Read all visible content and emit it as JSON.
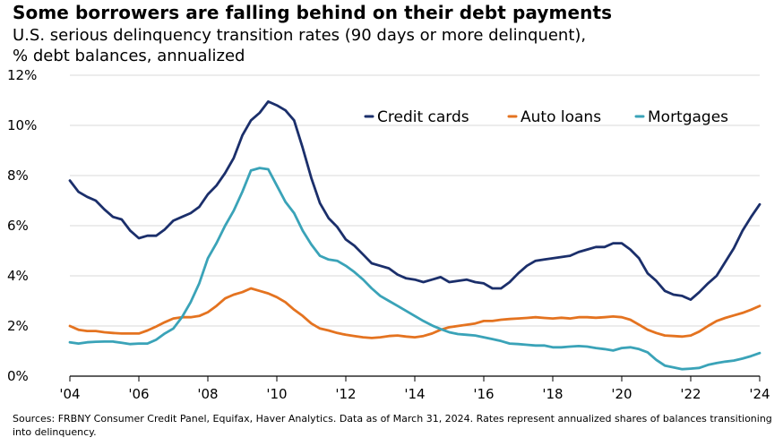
{
  "title": "Some borrowers are falling behind on their debt payments",
  "subtitle_line1": "U.S. serious delinquency transition rates (90 days or more delinquent),",
  "subtitle_line2": "% debt balances, annualized",
  "source": "Sources: FRBNY Consumer Credit Panel, Equifax, Haver Analytics. Data as of March 31, 2024. Rates represent annualized shares of balances transitioning into delinquency.",
  "chart_data": {
    "type": "line",
    "title": "Some borrowers are falling behind on their debt payments",
    "subtitle": "U.S. serious delinquency transition rates (90 days or more delinquent), % debt balances, annualized",
    "xlabel": "",
    "ylabel": "",
    "xlim": [
      2004,
      2024
    ],
    "ylim": [
      0,
      12
    ],
    "x_ticks": [
      {
        "value": 2004,
        "label": "'04"
      },
      {
        "value": 2006,
        "label": "'06"
      },
      {
        "value": 2008,
        "label": "'08"
      },
      {
        "value": 2010,
        "label": "'10"
      },
      {
        "value": 2012,
        "label": "'12"
      },
      {
        "value": 2014,
        "label": "'14"
      },
      {
        "value": 2016,
        "label": "'16"
      },
      {
        "value": 2018,
        "label": "'18"
      },
      {
        "value": 2020,
        "label": "'20"
      },
      {
        "value": 2022,
        "label": "'22"
      },
      {
        "value": 2024,
        "label": "'24"
      }
    ],
    "y_ticks": [
      {
        "value": 0,
        "label": "0%"
      },
      {
        "value": 2,
        "label": "2%"
      },
      {
        "value": 4,
        "label": "4%"
      },
      {
        "value": 6,
        "label": "6%"
      },
      {
        "value": 8,
        "label": "8%"
      },
      {
        "value": 10,
        "label": "10%"
      },
      {
        "value": 12,
        "label": "12%"
      }
    ],
    "grid": "horizontal",
    "legend_position": "top-right",
    "series": [
      {
        "name": "Credit cards",
        "color": "#1b2f6b",
        "points": [
          [
            2004.0,
            7.8
          ],
          [
            2004.25,
            7.35
          ],
          [
            2004.5,
            7.15
          ],
          [
            2004.75,
            7.0
          ],
          [
            2005.0,
            6.65
          ],
          [
            2005.25,
            6.35
          ],
          [
            2005.5,
            6.25
          ],
          [
            2005.75,
            5.8
          ],
          [
            2006.0,
            5.5
          ],
          [
            2006.25,
            5.6
          ],
          [
            2006.5,
            5.6
          ],
          [
            2006.75,
            5.85
          ],
          [
            2007.0,
            6.2
          ],
          [
            2007.25,
            6.35
          ],
          [
            2007.5,
            6.5
          ],
          [
            2007.75,
            6.75
          ],
          [
            2008.0,
            7.25
          ],
          [
            2008.25,
            7.6
          ],
          [
            2008.5,
            8.1
          ],
          [
            2008.75,
            8.7
          ],
          [
            2009.0,
            9.6
          ],
          [
            2009.25,
            10.2
          ],
          [
            2009.5,
            10.5
          ],
          [
            2009.75,
            10.95
          ],
          [
            2010.0,
            10.8
          ],
          [
            2010.25,
            10.6
          ],
          [
            2010.5,
            10.2
          ],
          [
            2010.75,
            9.1
          ],
          [
            2011.0,
            7.9
          ],
          [
            2011.25,
            6.9
          ],
          [
            2011.5,
            6.3
          ],
          [
            2011.75,
            5.95
          ],
          [
            2012.0,
            5.45
          ],
          [
            2012.25,
            5.2
          ],
          [
            2012.5,
            4.85
          ],
          [
            2012.75,
            4.5
          ],
          [
            2013.0,
            4.4
          ],
          [
            2013.25,
            4.3
          ],
          [
            2013.5,
            4.05
          ],
          [
            2013.75,
            3.9
          ],
          [
            2014.0,
            3.85
          ],
          [
            2014.25,
            3.75
          ],
          [
            2014.5,
            3.85
          ],
          [
            2014.75,
            3.95
          ],
          [
            2015.0,
            3.75
          ],
          [
            2015.25,
            3.8
          ],
          [
            2015.5,
            3.85
          ],
          [
            2015.75,
            3.75
          ],
          [
            2016.0,
            3.7
          ],
          [
            2016.25,
            3.5
          ],
          [
            2016.5,
            3.5
          ],
          [
            2016.75,
            3.75
          ],
          [
            2017.0,
            4.1
          ],
          [
            2017.25,
            4.4
          ],
          [
            2017.5,
            4.6
          ],
          [
            2017.75,
            4.65
          ],
          [
            2018.0,
            4.7
          ],
          [
            2018.25,
            4.75
          ],
          [
            2018.5,
            4.8
          ],
          [
            2018.75,
            4.95
          ],
          [
            2019.0,
            5.05
          ],
          [
            2019.25,
            5.15
          ],
          [
            2019.5,
            5.15
          ],
          [
            2019.75,
            5.3
          ],
          [
            2020.0,
            5.3
          ],
          [
            2020.25,
            5.05
          ],
          [
            2020.5,
            4.7
          ],
          [
            2020.75,
            4.1
          ],
          [
            2021.0,
            3.8
          ],
          [
            2021.25,
            3.4
          ],
          [
            2021.5,
            3.25
          ],
          [
            2021.75,
            3.2
          ],
          [
            2022.0,
            3.05
          ],
          [
            2022.25,
            3.35
          ],
          [
            2022.5,
            3.7
          ],
          [
            2022.75,
            4.0
          ],
          [
            2023.0,
            4.55
          ],
          [
            2023.25,
            5.1
          ],
          [
            2023.5,
            5.8
          ],
          [
            2023.75,
            6.35
          ],
          [
            2024.0,
            6.85
          ]
        ]
      },
      {
        "name": "Auto loans",
        "color": "#e47320",
        "points": [
          [
            2004.0,
            2.0
          ],
          [
            2004.25,
            1.85
          ],
          [
            2004.5,
            1.8
          ],
          [
            2004.75,
            1.8
          ],
          [
            2005.0,
            1.75
          ],
          [
            2005.25,
            1.72
          ],
          [
            2005.5,
            1.7
          ],
          [
            2005.75,
            1.7
          ],
          [
            2006.0,
            1.7
          ],
          [
            2006.25,
            1.82
          ],
          [
            2006.5,
            1.98
          ],
          [
            2006.75,
            2.15
          ],
          [
            2007.0,
            2.3
          ],
          [
            2007.25,
            2.35
          ],
          [
            2007.5,
            2.35
          ],
          [
            2007.75,
            2.4
          ],
          [
            2008.0,
            2.55
          ],
          [
            2008.25,
            2.8
          ],
          [
            2008.5,
            3.1
          ],
          [
            2008.75,
            3.25
          ],
          [
            2009.0,
            3.35
          ],
          [
            2009.25,
            3.5
          ],
          [
            2009.5,
            3.4
          ],
          [
            2009.75,
            3.3
          ],
          [
            2010.0,
            3.15
          ],
          [
            2010.25,
            2.95
          ],
          [
            2010.5,
            2.65
          ],
          [
            2010.75,
            2.4
          ],
          [
            2011.0,
            2.1
          ],
          [
            2011.25,
            1.9
          ],
          [
            2011.5,
            1.82
          ],
          [
            2011.75,
            1.72
          ],
          [
            2012.0,
            1.65
          ],
          [
            2012.25,
            1.6
          ],
          [
            2012.5,
            1.55
          ],
          [
            2012.75,
            1.52
          ],
          [
            2013.0,
            1.55
          ],
          [
            2013.25,
            1.6
          ],
          [
            2013.5,
            1.62
          ],
          [
            2013.75,
            1.58
          ],
          [
            2014.0,
            1.55
          ],
          [
            2014.25,
            1.6
          ],
          [
            2014.5,
            1.7
          ],
          [
            2014.75,
            1.85
          ],
          [
            2015.0,
            1.95
          ],
          [
            2015.25,
            2.0
          ],
          [
            2015.5,
            2.05
          ],
          [
            2015.75,
            2.1
          ],
          [
            2016.0,
            2.2
          ],
          [
            2016.25,
            2.2
          ],
          [
            2016.5,
            2.25
          ],
          [
            2016.75,
            2.28
          ],
          [
            2017.0,
            2.3
          ],
          [
            2017.25,
            2.32
          ],
          [
            2017.5,
            2.35
          ],
          [
            2017.75,
            2.32
          ],
          [
            2018.0,
            2.3
          ],
          [
            2018.25,
            2.33
          ],
          [
            2018.5,
            2.3
          ],
          [
            2018.75,
            2.35
          ],
          [
            2019.0,
            2.35
          ],
          [
            2019.25,
            2.33
          ],
          [
            2019.5,
            2.35
          ],
          [
            2019.75,
            2.38
          ],
          [
            2020.0,
            2.35
          ],
          [
            2020.25,
            2.25
          ],
          [
            2020.5,
            2.05
          ],
          [
            2020.75,
            1.85
          ],
          [
            2021.0,
            1.72
          ],
          [
            2021.25,
            1.62
          ],
          [
            2021.5,
            1.6
          ],
          [
            2021.75,
            1.58
          ],
          [
            2022.0,
            1.62
          ],
          [
            2022.25,
            1.78
          ],
          [
            2022.5,
            2.0
          ],
          [
            2022.75,
            2.2
          ],
          [
            2023.0,
            2.32
          ],
          [
            2023.25,
            2.42
          ],
          [
            2023.5,
            2.52
          ],
          [
            2023.75,
            2.65
          ],
          [
            2024.0,
            2.8
          ]
        ]
      },
      {
        "name": "Mortgages",
        "color": "#3aa3b8",
        "points": [
          [
            2004.0,
            1.35
          ],
          [
            2004.25,
            1.3
          ],
          [
            2004.5,
            1.35
          ],
          [
            2004.75,
            1.37
          ],
          [
            2005.0,
            1.38
          ],
          [
            2005.25,
            1.38
          ],
          [
            2005.5,
            1.33
          ],
          [
            2005.75,
            1.28
          ],
          [
            2006.0,
            1.3
          ],
          [
            2006.25,
            1.3
          ],
          [
            2006.5,
            1.45
          ],
          [
            2006.75,
            1.7
          ],
          [
            2007.0,
            1.9
          ],
          [
            2007.25,
            2.35
          ],
          [
            2007.5,
            2.95
          ],
          [
            2007.75,
            3.7
          ],
          [
            2008.0,
            4.7
          ],
          [
            2008.25,
            5.3
          ],
          [
            2008.5,
            6.0
          ],
          [
            2008.75,
            6.6
          ],
          [
            2009.0,
            7.35
          ],
          [
            2009.25,
            8.2
          ],
          [
            2009.5,
            8.3
          ],
          [
            2009.75,
            8.25
          ],
          [
            2010.0,
            7.6
          ],
          [
            2010.25,
            6.95
          ],
          [
            2010.5,
            6.5
          ],
          [
            2010.75,
            5.8
          ],
          [
            2011.0,
            5.25
          ],
          [
            2011.25,
            4.8
          ],
          [
            2011.5,
            4.65
          ],
          [
            2011.75,
            4.6
          ],
          [
            2012.0,
            4.4
          ],
          [
            2012.25,
            4.15
          ],
          [
            2012.5,
            3.85
          ],
          [
            2012.75,
            3.5
          ],
          [
            2013.0,
            3.2
          ],
          [
            2013.25,
            3.0
          ],
          [
            2013.5,
            2.8
          ],
          [
            2013.75,
            2.6
          ],
          [
            2014.0,
            2.4
          ],
          [
            2014.25,
            2.2
          ],
          [
            2014.5,
            2.02
          ],
          [
            2014.75,
            1.88
          ],
          [
            2015.0,
            1.75
          ],
          [
            2015.25,
            1.68
          ],
          [
            2015.5,
            1.65
          ],
          [
            2015.75,
            1.62
          ],
          [
            2016.0,
            1.55
          ],
          [
            2016.25,
            1.48
          ],
          [
            2016.5,
            1.4
          ],
          [
            2016.75,
            1.3
          ],
          [
            2017.0,
            1.28
          ],
          [
            2017.25,
            1.25
          ],
          [
            2017.5,
            1.22
          ],
          [
            2017.75,
            1.22
          ],
          [
            2018.0,
            1.15
          ],
          [
            2018.25,
            1.15
          ],
          [
            2018.5,
            1.18
          ],
          [
            2018.75,
            1.2
          ],
          [
            2019.0,
            1.18
          ],
          [
            2019.25,
            1.12
          ],
          [
            2019.5,
            1.08
          ],
          [
            2019.75,
            1.02
          ],
          [
            2020.0,
            1.12
          ],
          [
            2020.25,
            1.15
          ],
          [
            2020.5,
            1.08
          ],
          [
            2020.75,
            0.95
          ],
          [
            2021.0,
            0.65
          ],
          [
            2021.25,
            0.42
          ],
          [
            2021.5,
            0.35
          ],
          [
            2021.75,
            0.28
          ],
          [
            2022.0,
            0.3
          ],
          [
            2022.25,
            0.33
          ],
          [
            2022.5,
            0.45
          ],
          [
            2022.75,
            0.52
          ],
          [
            2023.0,
            0.58
          ],
          [
            2023.25,
            0.62
          ],
          [
            2023.5,
            0.7
          ],
          [
            2023.75,
            0.8
          ],
          [
            2024.0,
            0.92
          ]
        ]
      }
    ]
  }
}
